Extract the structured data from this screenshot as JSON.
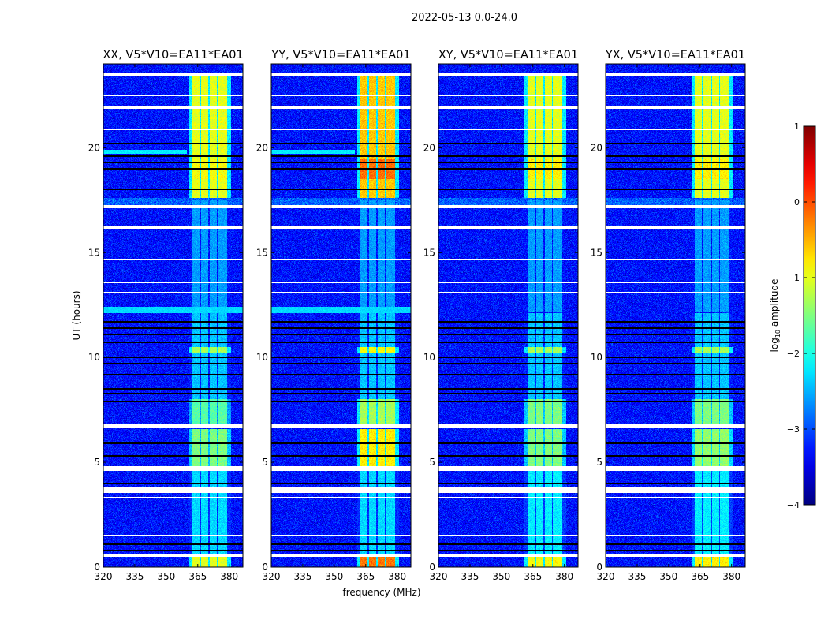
{
  "chart_data": {
    "type": "heatmap",
    "title": "2022-05-13 0.0-24.0",
    "xlabel": "frequency (MHz)",
    "ylabel": "UT (hours)",
    "xlim": [
      320,
      386.5
    ],
    "ylim": [
      0,
      24
    ],
    "xticks": [
      320,
      335,
      350,
      365,
      380
    ],
    "yticks": [
      0,
      5,
      10,
      15,
      20
    ],
    "panels": [
      {
        "title": "XX, V5*V10=EA11*EA01",
        "band_levels": [
          -1.0,
          -2.3,
          -1.5,
          -1.7,
          -2.4,
          -1.3,
          -2.6,
          -1.0,
          -0.9
        ]
      },
      {
        "title": "YY, V5*V10=EA11*EA01",
        "band_levels": [
          -0.2,
          -2.3,
          -0.8,
          -1.3,
          -2.4,
          -0.9,
          -2.6,
          -0.6,
          -0.15
        ]
      },
      {
        "title": "XY, V5*V10=EA11*EA01",
        "band_levels": [
          -0.9,
          -2.2,
          -1.5,
          -1.5,
          -2.4,
          -1.3,
          -2.6,
          -1.0,
          -0.8
        ]
      },
      {
        "title": "YX, V5*V10=EA11*EA01",
        "band_levels": [
          -0.8,
          -2.2,
          -1.4,
          -1.5,
          -2.4,
          -1.3,
          -2.6,
          -1.0,
          -0.8
        ]
      }
    ],
    "band_segments_hours": [
      [
        0,
        0.5
      ],
      [
        0.6,
        4.6
      ],
      [
        4.8,
        6.6
      ],
      [
        6.8,
        8.0
      ],
      [
        8.0,
        12.1
      ],
      [
        10.2,
        10.5
      ],
      [
        12.2,
        17.5
      ],
      [
        17.6,
        23.6
      ],
      [
        18.5,
        19.5
      ]
    ],
    "rfi_channels_mhz": [
      [
        362.5,
        366
      ],
      [
        366.6,
        370
      ],
      [
        370.6,
        374
      ],
      [
        374.6,
        379
      ]
    ],
    "background_level": -3.3,
    "flagged_hours": [
      [
        0.5,
        0.6
      ],
      [
        1.45,
        1.55
      ],
      [
        3.28,
        3.36
      ],
      [
        3.55,
        3.8
      ],
      [
        4.6,
        4.8
      ],
      [
        6.62,
        6.8
      ],
      [
        13.05,
        13.12
      ],
      [
        13.55,
        13.62
      ],
      [
        14.65,
        14.72
      ],
      [
        16.15,
        16.25
      ],
      [
        17.1,
        17.25
      ],
      [
        20.85,
        20.92
      ],
      [
        21.85,
        21.95
      ],
      [
        22.45,
        22.55
      ],
      [
        23.45,
        23.6
      ]
    ],
    "masked_hours": [
      0.8,
      1.1,
      4.0,
      5.3,
      5.9,
      6.3,
      7.9,
      8.3,
      8.5,
      9.2,
      9.7,
      10.0,
      10.7,
      11.1,
      11.4,
      11.7,
      18.0,
      19.0,
      19.3,
      19.6,
      20.2
    ],
    "colorbar": {
      "label_prefix": "log",
      "label_sub": "10",
      "label_suffix": " amplitude",
      "range": [
        -4,
        1
      ],
      "ticks": [
        -4,
        -3,
        -2,
        -1,
        0,
        1
      ],
      "colormap": "jet"
    }
  }
}
